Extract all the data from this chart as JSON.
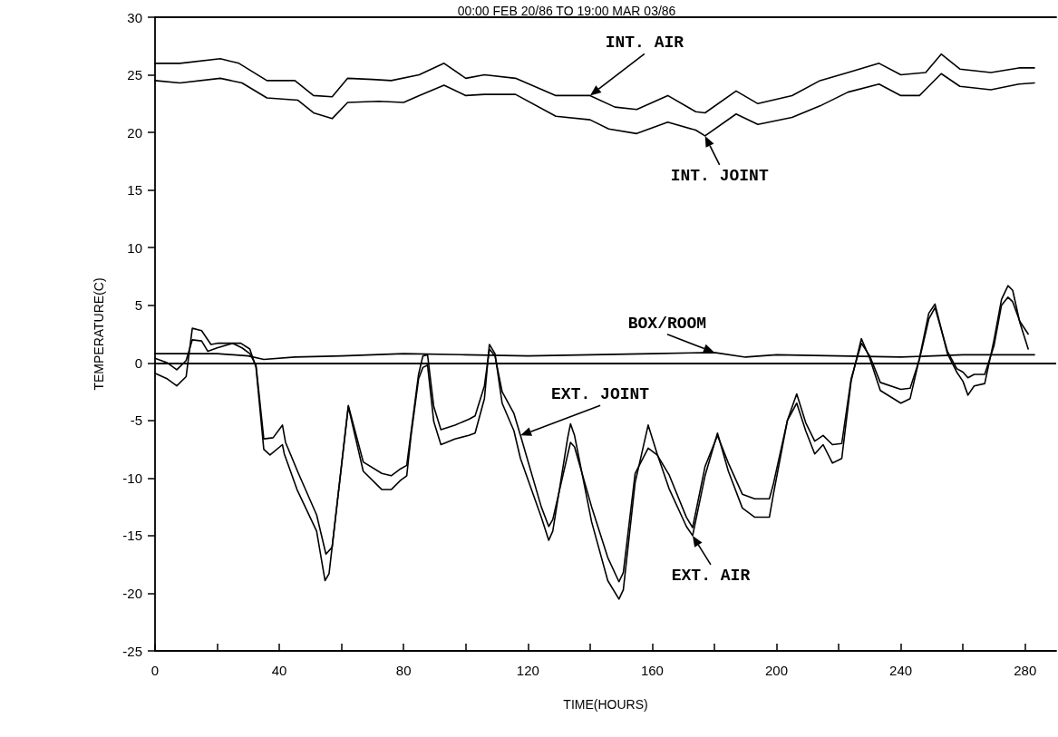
{
  "chart_data": {
    "type": "line",
    "title": "00:00 FEB 20/86 TO 19:00 MAR 03/86",
    "xlabel": "TIME(HOURS)",
    "ylabel": "TEMPERATURE(C)",
    "xlim": [
      0,
      290
    ],
    "ylim": [
      -25,
      30
    ],
    "xticks": [
      0,
      {
        "value": 20,
        "label": null
      },
      40,
      {
        "value": 60,
        "label": null
      },
      80,
      {
        "value": 100,
        "label": null
      },
      120,
      {
        "value": 140,
        "label": null
      },
      160,
      {
        "value": 180,
        "label": null
      },
      200,
      {
        "value": 220,
        "label": null
      },
      240,
      {
        "value": 260,
        "label": null
      },
      280
    ],
    "yticks": [
      -25,
      -20,
      -15,
      -10,
      -5,
      0,
      5,
      10,
      15,
      20,
      25,
      30
    ],
    "grid": false,
    "marker": "none",
    "line_style": "solid",
    "ref_lines": [
      {
        "axis": "y",
        "value": 0,
        "label": null,
        "color": "#000000"
      }
    ],
    "annotations": [
      {
        "text": "INT. AIR",
        "x": 140,
        "y": 23.2
      },
      {
        "text": "INT. JOINT",
        "x": 177,
        "y": 19.7
      },
      {
        "text": "BOX/ROOM",
        "x": 180,
        "y": 0.9
      },
      {
        "text": "EXT. JOINT",
        "x": 117.6,
        "y": -6.3
      },
      {
        "text": "EXT. AIR",
        "x": 173,
        "y": -15.0
      }
    ],
    "series": [
      {
        "color": "#000000",
        "x": [
          0,
          8,
          21,
          27,
          36,
          45,
          51,
          57,
          62,
          70,
          76,
          85,
          93,
          100,
          106,
          116,
          129,
          140,
          148,
          155,
          165,
          174,
          177,
          187,
          194,
          205,
          214,
          223,
          233,
          240,
          248,
          253,
          259,
          269,
          278,
          283
        ],
        "values": [
          26.0,
          26.0,
          26.4,
          26.0,
          24.5,
          24.5,
          23.2,
          23.1,
          24.7,
          24.6,
          24.5,
          25.0,
          26.0,
          24.7,
          25.0,
          24.7,
          23.2,
          23.2,
          22.2,
          22.0,
          23.2,
          21.8,
          21.7,
          23.6,
          22.5,
          23.2,
          24.5,
          25.2,
          26.0,
          25.0,
          25.2,
          26.8,
          25.5,
          25.2,
          25.6,
          25.6
        ]
      },
      {
        "color": "#000000",
        "x": [
          0,
          8,
          21,
          28,
          36,
          46,
          51,
          57,
          62,
          72,
          80,
          85,
          93,
          100,
          106,
          116,
          129,
          140,
          146,
          155,
          165,
          174,
          177,
          187,
          194,
          205,
          214,
          223,
          233,
          240,
          246,
          253,
          259,
          269,
          278,
          283
        ],
        "values": [
          24.5,
          24.3,
          24.7,
          24.3,
          23.0,
          22.8,
          21.7,
          21.2,
          22.6,
          22.7,
          22.6,
          23.2,
          24.1,
          23.2,
          23.3,
          23.3,
          21.4,
          21.1,
          20.3,
          19.9,
          20.9,
          20.2,
          19.7,
          21.6,
          20.7,
          21.3,
          22.3,
          23.5,
          24.2,
          23.2,
          23.2,
          25.1,
          24.0,
          23.7,
          24.2,
          24.3
        ]
      },
      {
        "color": "#000000",
        "x": [
          0,
          10,
          20,
          30,
          35,
          45,
          60,
          80,
          100,
          120,
          140,
          160,
          180,
          190,
          200,
          220,
          240,
          260,
          283
        ],
        "values": [
          0.8,
          0.8,
          0.8,
          0.6,
          0.3,
          0.5,
          0.6,
          0.8,
          0.7,
          0.6,
          0.7,
          0.8,
          0.9,
          0.5,
          0.7,
          0.6,
          0.5,
          0.7,
          0.7
        ]
      },
      {
        "color": "#000000",
        "x": [
          0,
          4,
          7,
          10,
          12,
          15,
          17,
          20,
          25,
          28,
          30.5,
          32.5,
          35,
          38,
          41,
          42,
          46,
          52,
          55,
          57,
          62.2,
          67,
          73,
          76,
          79,
          81,
          84.8,
          86.2,
          87.7,
          89.7,
          92,
          96.5,
          101,
          103,
          106,
          107.6,
          109.4,
          111.7,
          115.5,
          117.6,
          124.3,
          126.7,
          128,
          133.7,
          135,
          140.5,
          145.7,
          149.3,
          150.7,
          154.5,
          158.7,
          161.6,
          165.4,
          171,
          173,
          177,
          181,
          184.5,
          189,
          193,
          197.7,
          199,
          203.5,
          206.5,
          209.4,
          212.3,
          215,
          218,
          221,
          224,
          227.3,
          230,
          233.4,
          240,
          243,
          246,
          249,
          251,
          255,
          258,
          260,
          261.6,
          263.6,
          267,
          270,
          272.4,
          274.5,
          276,
          278.3,
          281
        ],
        "values": [
          0.4,
          0.0,
          -0.6,
          0.2,
          2.0,
          1.9,
          1.0,
          1.3,
          1.7,
          1.3,
          0.8,
          -0.2,
          -6.6,
          -6.5,
          -5.4,
          -6.9,
          -9.5,
          -13.2,
          -16.6,
          -16.0,
          -3.7,
          -8.6,
          -9.6,
          -9.8,
          -9.2,
          -8.9,
          -1.0,
          0.6,
          0.7,
          -3.8,
          -5.8,
          -5.4,
          -4.9,
          -4.6,
          -2.0,
          1.2,
          0.6,
          -2.5,
          -4.4,
          -6.3,
          -12.5,
          -14.2,
          -13.6,
          -6.9,
          -7.3,
          -12.5,
          -16.9,
          -19.0,
          -18.2,
          -9.6,
          -7.4,
          -8.0,
          -9.7,
          -13.4,
          -14.3,
          -9.0,
          -6.3,
          -8.7,
          -11.4,
          -11.8,
          -11.8,
          -10.5,
          -5.0,
          -2.7,
          -5.2,
          -6.8,
          -6.3,
          -7.1,
          -7.0,
          -1.4,
          1.7,
          0.6,
          -1.7,
          -2.3,
          -2.2,
          0.3,
          3.8,
          4.8,
          1.0,
          -0.5,
          -0.8,
          -1.3,
          -1.0,
          -1.0,
          1.5,
          5.0,
          5.7,
          5.3,
          3.6,
          2.5
        ]
      },
      {
        "color": "#000000",
        "x": [
          0,
          4,
          7,
          10,
          12,
          15,
          18,
          20,
          27.6,
          30.5,
          32.5,
          35,
          37,
          41,
          41.6,
          45.7,
          52,
          54.7,
          56,
          62.2,
          67,
          73,
          76,
          79,
          81,
          82.4,
          84.8,
          86.2,
          87.7,
          89.7,
          92,
          96.5,
          101,
          103,
          106,
          107.6,
          109.4,
          111.7,
          115.5,
          117.6,
          124.3,
          126.7,
          128,
          132.8,
          133.7,
          135,
          140.5,
          145.7,
          149.3,
          150.7,
          154.5,
          158.7,
          161.6,
          165.4,
          171,
          173,
          177,
          181,
          184.5,
          189,
          193,
          197.7,
          199,
          203.5,
          206.5,
          209.4,
          212.3,
          215,
          218,
          221,
          224,
          227.3,
          230,
          233.4,
          240,
          243,
          246,
          249,
          251,
          255,
          258,
          260,
          261.6,
          263.6,
          267,
          270,
          272.4,
          274.5,
          276,
          278.3,
          281
        ],
        "values": [
          -0.9,
          -1.4,
          -2.0,
          -1.2,
          3.0,
          2.8,
          1.6,
          1.7,
          1.7,
          1.2,
          -0.4,
          -7.5,
          -8.0,
          -7.1,
          -7.9,
          -11.0,
          -14.6,
          -18.9,
          -18.3,
          -3.8,
          -9.4,
          -11.0,
          -11.0,
          -10.2,
          -9.8,
          -6.3,
          -1.4,
          -0.4,
          -0.2,
          -5.1,
          -7.1,
          -6.6,
          -6.3,
          -6.1,
          -3.1,
          1.6,
          0.8,
          -3.5,
          -5.9,
          -8.3,
          -13.4,
          -15.4,
          -14.6,
          -6.5,
          -5.3,
          -6.3,
          -13.8,
          -18.9,
          -20.5,
          -19.7,
          -10.4,
          -5.4,
          -7.9,
          -10.9,
          -14.2,
          -15.0,
          -9.8,
          -6.1,
          -9.4,
          -12.6,
          -13.4,
          -13.4,
          -11.4,
          -5.0,
          -3.5,
          -5.9,
          -7.9,
          -7.1,
          -8.7,
          -8.3,
          -1.6,
          2.1,
          0.4,
          -2.4,
          -3.5,
          -3.1,
          0.4,
          4.3,
          5.1,
          0.8,
          -0.8,
          -1.6,
          -2.8,
          -2.0,
          -1.8,
          2.0,
          5.5,
          6.7,
          6.3,
          3.5,
          1.2
        ]
      }
    ]
  }
}
